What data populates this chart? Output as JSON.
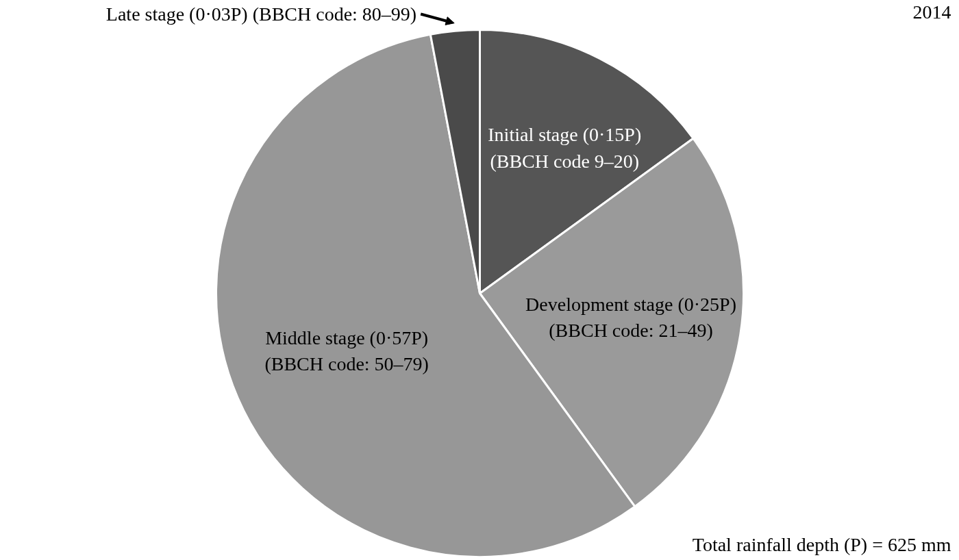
{
  "chart_data": {
    "type": "pie",
    "title": "2014",
    "categories": [
      "Initial stage (0·15P)\n(BBCH code 9–20)",
      "Development stage (0·25P)\n(BBCH code: 21–49)",
      "Middle stage (0·57P)\n(BBCH code: 50–79)",
      "Late stage (0·03P) (BBCH code: 80–99)"
    ],
    "values": [
      15,
      25,
      57,
      3
    ],
    "colors": [
      "#555555",
      "#9a9a9a",
      "#979797",
      "#4a4a4a"
    ],
    "annotations": [
      "Total rainfall depth (P) = 625 mm"
    ]
  }
}
